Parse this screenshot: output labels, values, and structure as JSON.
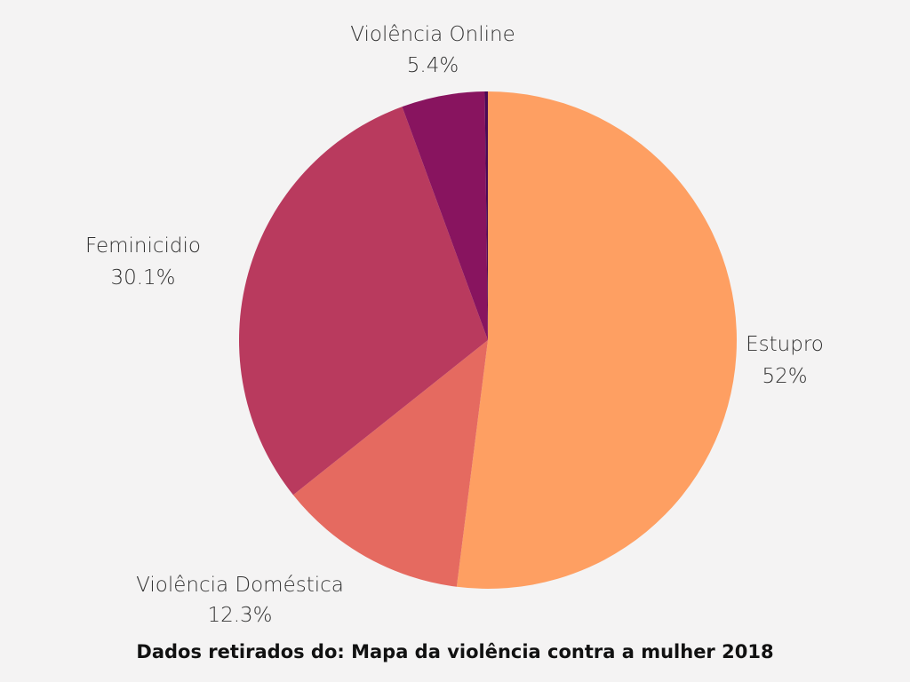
{
  "chart_data": {
    "type": "pie",
    "categories": [
      "Estupro",
      "Violência Doméstica",
      "Feminicidio",
      "Violência Online",
      ""
    ],
    "values": [
      52,
      12.3,
      30.1,
      5.4,
      0.2
    ],
    "value_labels": [
      "52%",
      "12.3%",
      "30.1%",
      "5.4%",
      ""
    ],
    "colors": [
      "#fe9f62",
      "#e56a60",
      "#b93a5e",
      "#88145f",
      "#4a0a55"
    ],
    "start_angle": "12 o'clock",
    "direction": "clockwise",
    "legend": "none",
    "labels_position": "outside"
  },
  "footer": {
    "source_text": "Dados retirados do: Mapa da violência contra a mulher 2018"
  }
}
